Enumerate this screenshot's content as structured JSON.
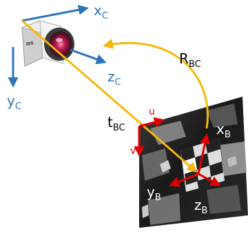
{
  "labels": {
    "camera_x": {
      "main": "x",
      "sub": "C"
    },
    "camera_y": {
      "main": "y",
      "sub": "C"
    },
    "camera_z": {
      "main": "z",
      "sub": "C"
    },
    "rotation": {
      "main": "R",
      "sub": "BC"
    },
    "translation": {
      "main": "t",
      "sub": "BC"
    },
    "image_u": "u",
    "image_v": "v",
    "board_x": {
      "main": "x",
      "sub": "B"
    },
    "board_y": {
      "main": "y",
      "sub": "B"
    },
    "board_z": {
      "main": "z",
      "sub": "B"
    }
  },
  "camera": {
    "brand": "iDS"
  },
  "colors": {
    "camera_axes": "#2e75b6",
    "image_axes": "#e00000",
    "board_axes": "#e00000",
    "transform_arrows": "#f5b80a",
    "label_camera": "#2e75b6",
    "label_black": "#000000",
    "label_white": "#ffffff",
    "label_red": "#e00000"
  },
  "icons": {
    "camera": "industrial-camera-icon",
    "image": "checkerboard-photo"
  }
}
